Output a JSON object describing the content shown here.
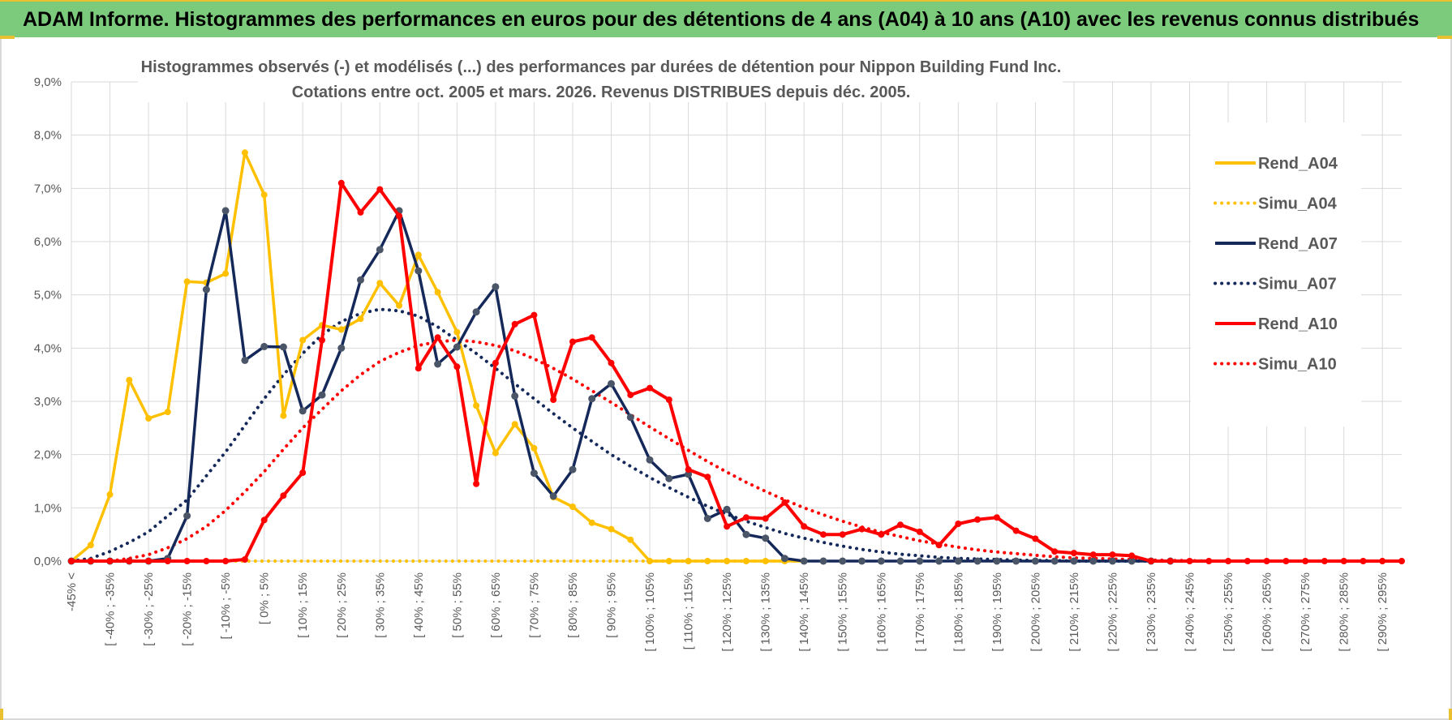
{
  "banner": {
    "title": "ADAM Informe. Histogrammes des performances en euros pour des détentions de 4 ans (A04) à 10 ans (A10) avec les revenus connus distribués"
  },
  "colors": {
    "banner_bg": "#7ccb7c",
    "accent_yellow": "#e8c030",
    "a04": "#ffc000",
    "a07": "#14285a",
    "a10": "#ff0000",
    "grid": "#d9d9d9",
    "text": "#595959"
  },
  "chart_data": {
    "type": "line",
    "title_line1": "Histogrammes observés (-) et modélisés (...) des performances par durées de détention pour Nippon Building Fund Inc.",
    "title_line2": "Cotations entre oct. 2005 et mars. 2026. Revenus DISTRIBUES depuis déc. 2005.",
    "xlabel": "",
    "ylabel": "",
    "ylim": [
      0,
      9
    ],
    "yticks": [
      "0,0%",
      "1,0%",
      "2,0%",
      "3,0%",
      "4,0%",
      "5,0%",
      "6,0%",
      "7,0%",
      "8,0%",
      "9,0%"
    ],
    "grid": true,
    "legend_position": "right",
    "x_labels": [
      "-45% <",
      "[ -40% ; -35%",
      "[ -30% ; -25%",
      "[ -20% ; -15%",
      "[ -10% ; -5%",
      "[ 0% ; 5%",
      "[ 10% ; 15%",
      "[ 20% ; 25%",
      "[ 30% ; 35%",
      "[ 40% ; 45%",
      "[ 50% ; 55%",
      "[ 60% ; 65%",
      "[ 70% ; 75%",
      "[ 80% ; 85%",
      "[ 90% ; 95%",
      "[ 100% ; 105%",
      "[ 110% ; 115%",
      "[ 120% ; 125%",
      "[ 130% ; 135%",
      "[ 140% ; 145%",
      "[ 150% ; 155%",
      "[ 160% ; 165%",
      "[ 170% ; 175%",
      "[ 180% ; 185%",
      "[ 190% ; 195%",
      "[ 200% ; 205%",
      "[ 210% ; 215%",
      "[ 220% ; 225%",
      "[ 230% ; 235%",
      "[ 240% ; 245%",
      "[ 250% ; 255%",
      "[ 260% ; 265%",
      "[ 270% ; 275%",
      "[ 280% ; 285%",
      "[ 290% ; 295%"
    ],
    "series": [
      {
        "name": "Rend_A04",
        "style": "solid",
        "color": "#ffc000",
        "values": [
          0.0,
          0.3,
          1.25,
          3.4,
          2.68,
          2.8,
          5.25,
          5.23,
          5.4,
          7.67,
          6.88,
          2.73,
          4.15,
          4.43,
          4.35,
          4.55,
          5.22,
          4.8,
          5.75,
          5.05,
          4.3,
          2.92,
          2.03,
          2.57,
          2.12,
          1.2,
          1.02,
          0.72,
          0.6,
          0.4,
          0.0,
          0.0,
          0.0,
          0.0,
          0.0,
          0.0,
          0.0,
          0.0,
          0.0
        ]
      },
      {
        "name": "Simu_A04",
        "style": "dotted",
        "color": "#ffc000",
        "values": [
          0.0,
          0.0,
          0.0,
          0.0,
          0.0,
          0.0,
          0.0,
          0.0,
          0.0,
          0.0,
          0.0,
          0.0,
          0.0,
          0.0,
          0.0,
          0.0,
          0.0,
          0.0,
          0.0,
          0.0,
          0.0,
          0.0,
          0.0,
          0.0,
          0.0,
          0.0,
          0.0,
          0.0,
          0.0,
          0.0,
          0.0,
          0.0,
          0.0,
          0.0,
          0.0,
          0.0,
          0.0,
          0.0,
          0.0
        ]
      },
      {
        "name": "Rend_A07",
        "style": "solid",
        "color": "#14285a",
        "values": [
          0.0,
          0.0,
          0.0,
          0.0,
          0.0,
          0.05,
          0.85,
          5.1,
          6.58,
          3.77,
          4.03,
          4.02,
          2.82,
          3.12,
          4.0,
          5.28,
          5.85,
          6.58,
          5.45,
          3.7,
          4.02,
          4.68,
          5.15,
          3.1,
          1.65,
          1.22,
          1.72,
          3.05,
          3.33,
          2.7,
          1.9,
          1.55,
          1.63,
          0.8,
          0.97,
          0.5,
          0.43,
          0.05,
          0.0,
          0.0,
          0.0,
          0.0,
          0.0,
          0.0,
          0.0,
          0.0,
          0.0,
          0.0,
          0.0,
          0.0,
          0.0,
          0.0,
          0.0,
          0.0,
          0.0,
          0.0,
          0.0,
          0.0
        ]
      },
      {
        "name": "Simu_A07",
        "style": "dotted",
        "color": "#14285a",
        "values": [
          0.0,
          0.05,
          0.18,
          0.35,
          0.55,
          0.85,
          1.15,
          1.6,
          2.05,
          2.55,
          3.05,
          3.5,
          3.9,
          4.25,
          4.5,
          4.65,
          4.73,
          4.7,
          4.6,
          4.4,
          4.15,
          3.9,
          3.62,
          3.33,
          3.05,
          2.77,
          2.5,
          2.25,
          2.0,
          1.78,
          1.57,
          1.38,
          1.2,
          1.03,
          0.88,
          0.75,
          0.63,
          0.52,
          0.43,
          0.35,
          0.28,
          0.22,
          0.17,
          0.13,
          0.1,
          0.07,
          0.05,
          0.04,
          0.03,
          0.02,
          0.01,
          0.01,
          0.0,
          0.0,
          0.0,
          0.0,
          0.0,
          0.0,
          0.0,
          0.0,
          0.0,
          0.0,
          0.0,
          0.0,
          0.0,
          0.0,
          0.0,
          0.0,
          0.0,
          0.0
        ]
      },
      {
        "name": "Rend_A10",
        "style": "solid",
        "color": "#ff0000",
        "values": [
          0.0,
          0.0,
          0.0,
          0.0,
          0.0,
          0.0,
          0.0,
          0.0,
          0.0,
          0.03,
          0.77,
          1.23,
          1.66,
          4.15,
          7.1,
          6.55,
          6.98,
          6.48,
          3.62,
          4.2,
          3.65,
          1.45,
          3.72,
          4.45,
          4.62,
          3.03,
          4.12,
          4.2,
          3.72,
          3.12,
          3.25,
          3.03,
          1.72,
          1.58,
          0.65,
          0.82,
          0.8,
          1.1,
          0.65,
          0.5,
          0.5,
          0.6,
          0.5,
          0.68,
          0.55,
          0.3,
          0.7,
          0.78,
          0.82,
          0.57,
          0.42,
          0.18,
          0.15,
          0.12,
          0.12,
          0.1,
          0.0,
          0.0,
          0.0,
          0.0,
          0.0,
          0.0,
          0.0,
          0.0,
          0.0,
          0.0,
          0.0,
          0.0,
          0.0,
          0.0
        ]
      },
      {
        "name": "Simu_A10",
        "style": "dotted",
        "color": "#ff0000",
        "values": [
          0.0,
          0.0,
          0.0,
          0.05,
          0.12,
          0.25,
          0.42,
          0.65,
          0.95,
          1.3,
          1.68,
          2.1,
          2.5,
          2.85,
          3.2,
          3.5,
          3.75,
          3.92,
          4.05,
          4.12,
          4.15,
          4.12,
          4.05,
          3.95,
          3.8,
          3.62,
          3.42,
          3.2,
          2.98,
          2.75,
          2.52,
          2.3,
          2.08,
          1.87,
          1.67,
          1.48,
          1.31,
          1.15,
          1.0,
          0.87,
          0.75,
          0.64,
          0.54,
          0.46,
          0.38,
          0.32,
          0.26,
          0.21,
          0.17,
          0.14,
          0.11,
          0.08,
          0.06,
          0.05,
          0.04,
          0.03,
          0.02,
          0.01,
          0.01,
          0.0,
          0.0,
          0.0,
          0.0,
          0.0,
          0.0,
          0.0,
          0.0,
          0.0,
          0.0,
          0.0
        ]
      }
    ]
  }
}
